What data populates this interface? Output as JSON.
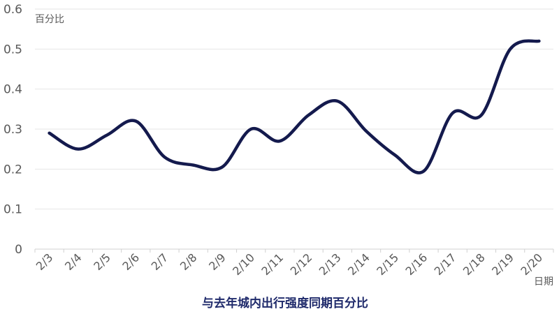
{
  "chart_data": {
    "type": "line",
    "title": "与去年城内出行强度同期百分比",
    "ylabel": "百分比",
    "xlabel": "日期",
    "categories": [
      "2/3",
      "2/4",
      "2/5",
      "2/6",
      "2/7",
      "2/8",
      "2/9",
      "2/10",
      "2/11",
      "2/12",
      "2/13",
      "2/14",
      "2/15",
      "2/16",
      "2/17",
      "2/18",
      "2/19",
      "2/20"
    ],
    "series": [
      {
        "values": [
          0.29,
          0.25,
          0.285,
          0.32,
          0.23,
          0.21,
          0.205,
          0.3,
          0.27,
          0.335,
          0.37,
          0.295,
          0.235,
          0.195,
          0.34,
          0.335,
          0.5,
          0.52
        ]
      }
    ],
    "yticks": [
      "0",
      "0.1",
      "0.2",
      "0.3",
      "0.4",
      "0.5",
      "0.6"
    ],
    "ylim": [
      0,
      0.6
    ],
    "grid": true,
    "legend": "none",
    "line_color": "#141a4d"
  }
}
